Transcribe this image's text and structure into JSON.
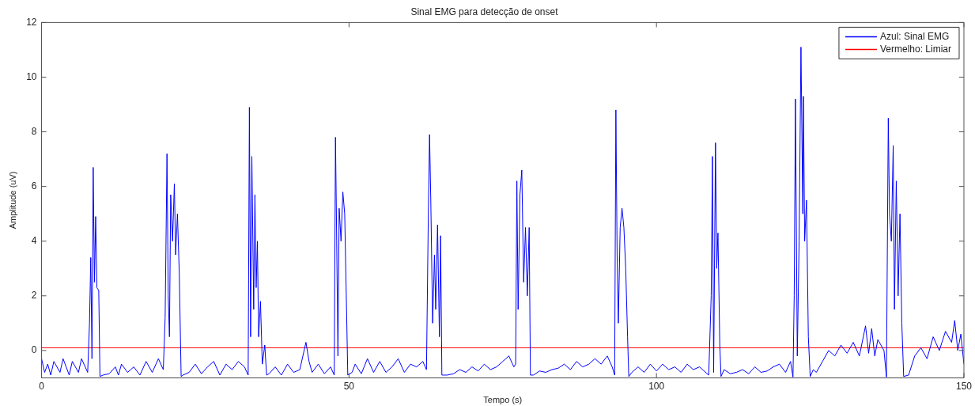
{
  "chart_data": {
    "type": "line",
    "title": "Sinal EMG para detecção de onset",
    "xlabel": "Tempo (s)",
    "ylabel": "Amplitude (uV)",
    "xlim": [
      0,
      150
    ],
    "xticks": [
      0,
      50,
      100,
      150
    ],
    "ylim": [
      -1,
      12
    ],
    "yticks": [
      0,
      2,
      4,
      6,
      8,
      10,
      12
    ],
    "grid": false,
    "legend": "top right",
    "marker": "none",
    "line_style": "solid",
    "series": [
      {
        "name": "Azul: Sinal EMG",
        "color": "#0000ff",
        "x": [
          0,
          0.5,
          1,
          1.5,
          2,
          3,
          3.5,
          4.5,
          5,
          6,
          6.5,
          7.5,
          7.8,
          8.0,
          8.2,
          8.4,
          8.6,
          8.8,
          9.0,
          9.3,
          9.5,
          10,
          11,
          12,
          12.5,
          13,
          14,
          15,
          16,
          17,
          18,
          19,
          19.8,
          20.1,
          20.4,
          20.6,
          20.8,
          21.0,
          21.3,
          21.6,
          21.8,
          22.1,
          22.4,
          22.7,
          23,
          24,
          25,
          26,
          27,
          28,
          29,
          30,
          31,
          32,
          33,
          33.6,
          33.8,
          34.0,
          34.2,
          34.5,
          34.7,
          34.9,
          35.1,
          35.3,
          35.6,
          35.9,
          36.3,
          36.6,
          37,
          38,
          39,
          40,
          41,
          42,
          43,
          43.5,
          44,
          45,
          46,
          47,
          47.6,
          47.8,
          48.0,
          48.2,
          48.4,
          48.7,
          49.0,
          49.3,
          49.6,
          49.8,
          50.5,
          51,
          52,
          53,
          54,
          55,
          56,
          57,
          58,
          59,
          60,
          61,
          62,
          62.6,
          62.9,
          63.1,
          63.3,
          63.6,
          63.9,
          64.1,
          64.4,
          64.7,
          64.9,
          65.1,
          66,
          67,
          68,
          69,
          70,
          71,
          72,
          73,
          74,
          75,
          76,
          76.8,
          77.1,
          77.3,
          77.5,
          77.8,
          78.1,
          78.4,
          78.7,
          79.0,
          79.3,
          79.5,
          80,
          81,
          82,
          83,
          84,
          85,
          86,
          87,
          88,
          89,
          90,
          91,
          92,
          92.8,
          93.2,
          93.4,
          93.6,
          93.8,
          94.1,
          94.4,
          94.7,
          95.0,
          95.3,
          95.5,
          96,
          97,
          98,
          99,
          100,
          101,
          102,
          103,
          104,
          105,
          106,
          107,
          108.5,
          108.9,
          109.1,
          109.3,
          109.6,
          109.8,
          110.0,
          110.3,
          110.5,
          111,
          112,
          113,
          114,
          115,
          116,
          117,
          118,
          119,
          120,
          121,
          121.8,
          122.2,
          122.4,
          122.6,
          122.9,
          123.2,
          123.5,
          123.8,
          123.9,
          124.1,
          124.4,
          124.7,
          125.0,
          125.5,
          126,
          127,
          128,
          129,
          130,
          131,
          132,
          133,
          134,
          134.5,
          135,
          135.5,
          136,
          137,
          137.4,
          137.7,
          137.9,
          138.2,
          138.5,
          138.7,
          139.0,
          139.3,
          139.6,
          139.9,
          140.2,
          141,
          142,
          143,
          144,
          145,
          146,
          147,
          148,
          148.5,
          149,
          149.5,
          150
        ],
        "values": [
          -0.3,
          -0.8,
          -0.5,
          -0.9,
          -0.4,
          -0.8,
          -0.3,
          -0.9,
          -0.4,
          -0.8,
          -0.3,
          -0.8,
          1.0,
          3.4,
          -0.3,
          6.7,
          2.5,
          4.9,
          2.3,
          2.2,
          -0.95,
          -0.9,
          -0.85,
          -0.6,
          -0.9,
          -0.5,
          -0.8,
          -0.6,
          -0.9,
          -0.4,
          -0.8,
          -0.3,
          -0.7,
          1.2,
          7.2,
          2.0,
          0.5,
          5.7,
          4.0,
          6.1,
          3.5,
          5.0,
          2.8,
          -0.95,
          -0.9,
          -0.8,
          -0.5,
          -0.85,
          -0.6,
          -0.4,
          -0.9,
          -0.5,
          -0.7,
          -0.4,
          -0.6,
          -0.9,
          8.9,
          0.5,
          7.1,
          1.5,
          5.7,
          2.3,
          4.0,
          0.5,
          1.8,
          -0.5,
          0.2,
          -0.9,
          -0.85,
          -0.6,
          -0.9,
          -0.5,
          -0.8,
          -0.7,
          0.3,
          -0.4,
          -0.8,
          -0.5,
          -0.85,
          -0.6,
          -0.9,
          7.8,
          4.0,
          -0.2,
          5.2,
          4.0,
          5.8,
          5.0,
          1.5,
          -0.9,
          -0.8,
          -0.5,
          -0.85,
          -0.3,
          -0.8,
          -0.4,
          -0.8,
          -0.6,
          -0.3,
          -0.8,
          -0.5,
          -0.6,
          -0.4,
          -0.7,
          5.0,
          7.9,
          5.5,
          1.0,
          3.5,
          1.5,
          4.6,
          0.5,
          4.2,
          -0.9,
          -0.9,
          -0.85,
          -0.7,
          -0.8,
          -0.6,
          -0.75,
          -0.5,
          -0.7,
          -0.6,
          -0.4,
          -0.2,
          -0.6,
          -0.5,
          6.2,
          1.5,
          5.7,
          6.6,
          2.5,
          4.5,
          2.0,
          4.5,
          -0.9,
          -0.9,
          -0.75,
          -0.8,
          -0.7,
          -0.65,
          -0.5,
          -0.7,
          -0.4,
          -0.6,
          -0.5,
          -0.3,
          -0.5,
          -0.2,
          -0.6,
          -0.9,
          8.8,
          3.5,
          1.0,
          4.5,
          5.2,
          4.5,
          3.0,
          0.5,
          -0.95,
          -0.8,
          -0.6,
          -0.8,
          -0.5,
          -0.75,
          -0.5,
          -0.7,
          -0.6,
          -0.8,
          -0.5,
          -0.7,
          -0.6,
          -0.9,
          2.0,
          7.1,
          -0.8,
          7.6,
          3.0,
          4.3,
          0.2,
          -0.95,
          -0.7,
          -0.85,
          -0.8,
          -0.7,
          -0.85,
          -0.6,
          -0.8,
          -0.75,
          -0.6,
          -0.5,
          -0.8,
          -0.4,
          -0.97,
          2.0,
          9.2,
          -0.2,
          4.0,
          11.1,
          5.0,
          9.3,
          4.0,
          5.5,
          0.5,
          -0.95,
          -0.7,
          -0.8,
          -0.4,
          0.0,
          -0.2,
          0.2,
          -0.1,
          0.3,
          -0.2,
          0.9,
          -0.1,
          0.8,
          -0.2,
          0.4,
          0.0,
          -0.97,
          8.5,
          5.0,
          4.0,
          7.5,
          1.5,
          6.2,
          2.0,
          5.0,
          1.0,
          -0.95,
          -0.9,
          -0.2,
          0.1,
          -0.3,
          0.5,
          0.0,
          0.7,
          0.3,
          1.1,
          0.0,
          0.6,
          -0.5
        ]
      },
      {
        "name": "Vermelho: Limiar",
        "color": "#ff0000",
        "x": [
          0,
          150
        ],
        "values": [
          0.1,
          0.1
        ]
      }
    ]
  }
}
